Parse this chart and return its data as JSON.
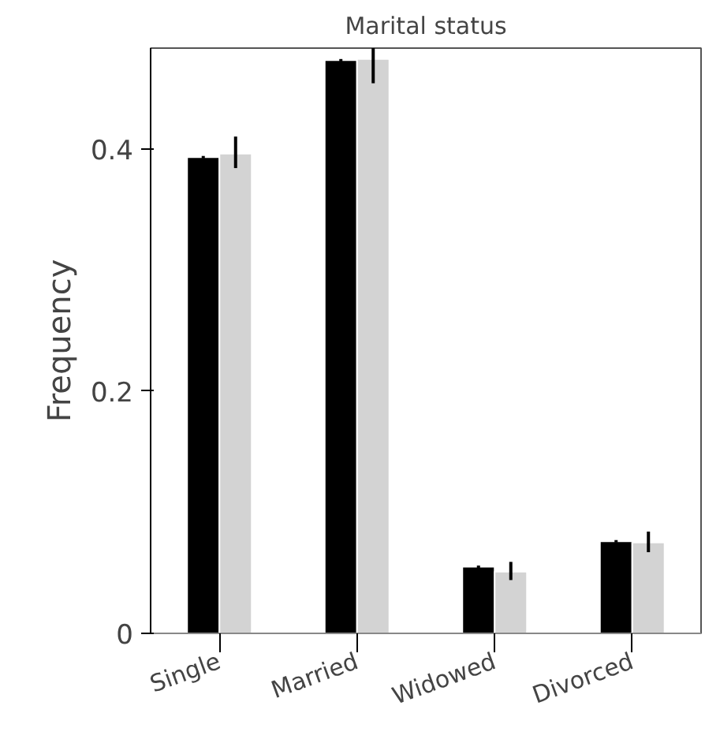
{
  "chart_data": {
    "type": "bar",
    "title": "Marital status",
    "ylabel": "Frequency",
    "categories": [
      "Single",
      "Married",
      "Widowed",
      "Divorced"
    ],
    "series": [
      {
        "color": "#000000",
        "values": [
          0.393,
          0.473,
          0.055,
          0.076
        ],
        "errors": [
          0.001,
          0.001,
          0.001,
          0.001
        ]
      },
      {
        "color": "#d3d3d3",
        "values": [
          0.396,
          0.474,
          0.051,
          0.075
        ],
        "errors": [
          [
            0.384,
            0.41
          ],
          [
            0.454,
            0.483
          ],
          [
            0.044,
            0.059
          ],
          [
            0.067,
            0.084
          ]
        ]
      }
    ],
    "ylim": [
      0,
      0.483
    ],
    "yticks": [
      0,
      0.2,
      0.4
    ],
    "grid": false
  }
}
